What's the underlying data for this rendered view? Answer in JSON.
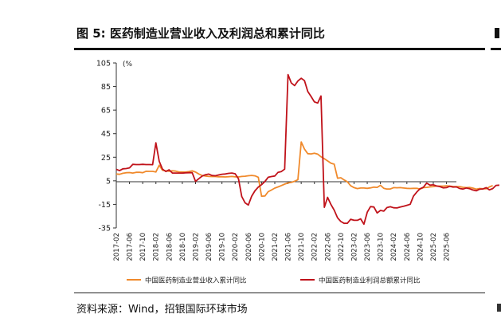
{
  "figure": {
    "title": "图 5: 医药制造业营业收入及利润总和累计同比",
    "source": "资料来源：Wind，招银国际环球市场"
  },
  "chart_data": {
    "type": "line",
    "ylabel": "(%",
    "ylim": [
      -35,
      105
    ],
    "yticks": [
      -35,
      -15,
      5,
      25,
      45,
      65,
      85,
      105
    ],
    "xticks": [
      "2017-02",
      "2017-06",
      "2017-10",
      "2018-02",
      "2018-06",
      "2018-10",
      "2019-02",
      "2019-06",
      "2019-10",
      "2020-02",
      "2020-06",
      "2020-10",
      "2021-02",
      "2021-06",
      "2021-10",
      "2022-02",
      "2022-06",
      "2022-10",
      "2023-02",
      "2023-06",
      "2023-10",
      "2024-02",
      "2024-06",
      "2024-10",
      "2025-02",
      "2025-06"
    ],
    "x_start": "2017-02",
    "x_end": "2025-09",
    "grid": false,
    "legend_position": "bottom",
    "series": [
      {
        "name": "中国医药制造业营业收入累计同比",
        "color": "#f08a2c",
        "values": [
          10.8,
          10.5,
          11.4,
          11.9,
          12.0,
          11.6,
          12.2,
          12.3,
          11.9,
          13.1,
          13.0,
          13.0,
          12.5,
          18.2,
          14.0,
          13.4,
          13.1,
          13.5,
          13.2,
          12.5,
          12.5,
          12.4,
          12.9,
          13.4,
          12.4,
          10.8,
          9.5,
          9.1,
          8.7,
          8.6,
          8.6,
          8.4,
          8.4,
          8.3,
          8.5,
          8.7,
          8.4,
          8.3,
          8.7,
          8.9,
          9.3,
          9.6,
          9.2,
          8.0,
          -8.1,
          -7.9,
          -4.2,
          -2.8,
          -1.2,
          -0.2,
          1.0,
          2.2,
          3.2,
          3.6,
          4.6,
          6.0,
          38.0,
          31.9,
          28.0,
          27.8,
          28.4,
          27.6,
          25.4,
          23.8,
          21.9,
          19.9,
          19.1,
          7.2,
          7.6,
          5.8,
          4.1,
          0.8,
          -0.8,
          -1.6,
          -1.1,
          -1.1,
          -1.4,
          -1.0,
          -0.4,
          -0.6,
          1.2,
          -1.3,
          -2.0,
          -1.9,
          -0.8,
          -0.9,
          -0.8,
          -1.1,
          -1.4,
          -1.5,
          -1.4,
          -1.4,
          -2.0,
          -0.8,
          -0.6,
          -0.2,
          0.1,
          0.6,
          0.5,
          0.5,
          0.8,
          0.5,
          0.2,
          0.1,
          0.1,
          -0.5,
          -0.8,
          -0.6,
          -1.2,
          -2.1,
          -1.5,
          -1.7,
          -1.8,
          -0.2,
          0.9
        ]
      },
      {
        "name": "中国医药制造业利润总额累计同比",
        "color": "#c0121a",
        "values": [
          14.8,
          13.6,
          15.2,
          15.4,
          16.0,
          19.0,
          18.8,
          18.8,
          19.0,
          18.8,
          18.8,
          18.7,
          37.2,
          21.6,
          14.9,
          12.9,
          14.3,
          11.6,
          11.6,
          11.6,
          11.5,
          11.8,
          11.9,
          11.9,
          4.5,
          6.8,
          9.0,
          10.2,
          10.7,
          9.5,
          9.3,
          10.0,
          10.6,
          10.8,
          11.3,
          11.6,
          11.0,
          6.8,
          -8.3,
          -13.7,
          -15.5,
          -8.0,
          -3.5,
          -0.3,
          1.7,
          4.4,
          8.0,
          8.6,
          9.1,
          12.2,
          12.9,
          14.9,
          95.1,
          88.0,
          85.8,
          89.7,
          92.0,
          90.0,
          80.8,
          76.5,
          72.0,
          71.0,
          77.0,
          -17.5,
          -9.0,
          -15.1,
          -19.9,
          -26.4,
          -29.5,
          -31.1,
          -31.0,
          -27.6,
          -28.5,
          -28.5,
          -27.3,
          -31.8,
          -21.6,
          -16.9,
          -17.2,
          -22.3,
          -20.1,
          -20.7,
          -17.7,
          -17.0,
          -17.9,
          -18.0,
          -17.2,
          -16.6,
          -15.8,
          -14.9,
          -8.0,
          -4.5,
          -1.7,
          -0.5,
          3.1,
          1.3,
          1.6,
          0.6,
          0.1,
          -1.0,
          -0.8,
          0.4,
          -0.3,
          -0.2,
          -1.5,
          -2.0,
          -1.1,
          -1.7,
          -2.8,
          -3.5,
          -2.1,
          -1.9,
          -0.8,
          -2.7,
          -1.6,
          1.1,
          1.3
        ]
      }
    ]
  }
}
